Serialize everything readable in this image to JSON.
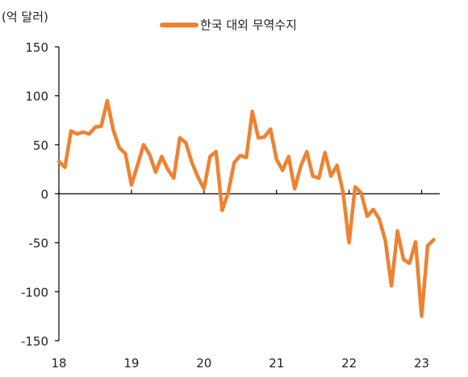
{
  "chart_data": {
    "type": "line",
    "unit_label": "(억 달러)",
    "title": "",
    "xlabel": "",
    "ylabel": "",
    "ylim": [
      -150,
      150
    ],
    "yticks": [
      150,
      100,
      50,
      0,
      -50,
      -100,
      -150
    ],
    "xlim": [
      2018,
      2023.25
    ],
    "xticks": [
      {
        "value": 2018,
        "label": "18"
      },
      {
        "value": 2019,
        "label": "19"
      },
      {
        "value": 2020,
        "label": "20"
      },
      {
        "value": 2021,
        "label": "21"
      },
      {
        "value": 2022,
        "label": "22"
      },
      {
        "value": 2023,
        "label": "23"
      }
    ],
    "grid": false,
    "legend_position": "top-center",
    "series": [
      {
        "name": "한국 대외 무역수지",
        "color": "#ee8232",
        "x": [
          "2018-01",
          "2018-02",
          "2018-03",
          "2018-04",
          "2018-05",
          "2018-06",
          "2018-07",
          "2018-08",
          "2018-09",
          "2018-10",
          "2018-11",
          "2018-12",
          "2019-01",
          "2019-02",
          "2019-03",
          "2019-04",
          "2019-05",
          "2019-06",
          "2019-07",
          "2019-08",
          "2019-09",
          "2019-10",
          "2019-11",
          "2019-12",
          "2020-01",
          "2020-02",
          "2020-03",
          "2020-04",
          "2020-05",
          "2020-06",
          "2020-07",
          "2020-08",
          "2020-09",
          "2020-10",
          "2020-11",
          "2020-12",
          "2021-01",
          "2021-02",
          "2021-03",
          "2021-04",
          "2021-05",
          "2021-06",
          "2021-07",
          "2021-08",
          "2021-09",
          "2021-10",
          "2021-11",
          "2021-12",
          "2022-01",
          "2022-02",
          "2022-03",
          "2022-04",
          "2022-05",
          "2022-06",
          "2022-07",
          "2022-08",
          "2022-09",
          "2022-10",
          "2022-11",
          "2022-12",
          "2023-01",
          "2023-02",
          "2023-03"
        ],
        "values": [
          33,
          27,
          64,
          61,
          63,
          61,
          68,
          69,
          95,
          65,
          47,
          41,
          9,
          29,
          50,
          40,
          22,
          38,
          25,
          16,
          57,
          52,
          32,
          17,
          5,
          38,
          43,
          -17,
          1,
          32,
          39,
          37,
          84,
          57,
          58,
          66,
          35,
          24,
          38,
          5,
          28,
          43,
          18,
          16,
          42,
          18,
          29,
          2,
          -50,
          7,
          1,
          -23,
          -16,
          -26,
          -48,
          -94,
          -38,
          -67,
          -71,
          -49,
          -125,
          -53,
          -47
        ]
      }
    ]
  }
}
